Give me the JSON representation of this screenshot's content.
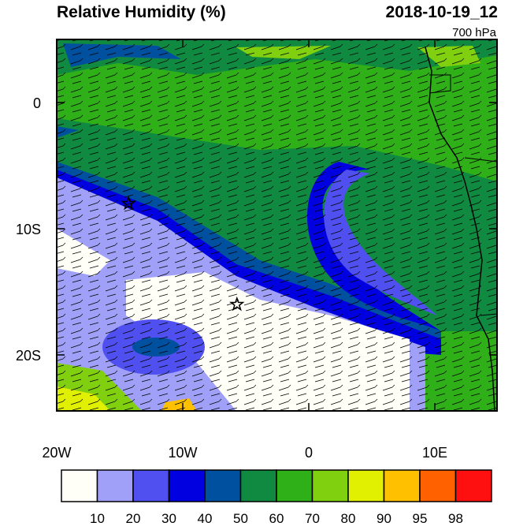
{
  "header": {
    "title": "Relative Humidity (%)",
    "valid_time": "2018-10-19_12",
    "level": "700 hPa"
  },
  "map": {
    "lat_ticks": [
      {
        "value": 0,
        "label": "0"
      },
      {
        "value": -10,
        "label": "10S"
      },
      {
        "value": -20,
        "label": "20S"
      }
    ],
    "lon_ticks": [
      {
        "value": -20,
        "label": "20W"
      },
      {
        "value": -10,
        "label": "10W"
      },
      {
        "value": 0,
        "label": "0"
      },
      {
        "value": 10,
        "label": "10E"
      }
    ],
    "stations": [
      {
        "lon": -14.3,
        "lat": -8
      },
      {
        "lon": -5.7,
        "lat": -16
      }
    ]
  },
  "colorbar": {
    "levels": [
      10,
      20,
      30,
      40,
      50,
      60,
      70,
      80,
      90,
      95,
      98
    ],
    "colors": [
      "#fffff8",
      "#a0a0f8",
      "#5050f0",
      "#0000e0",
      "#0050a0",
      "#108a40",
      "#30b018",
      "#80d010",
      "#e0f000",
      "#ffc000",
      "#ff6000",
      "#ff1010"
    ]
  }
}
